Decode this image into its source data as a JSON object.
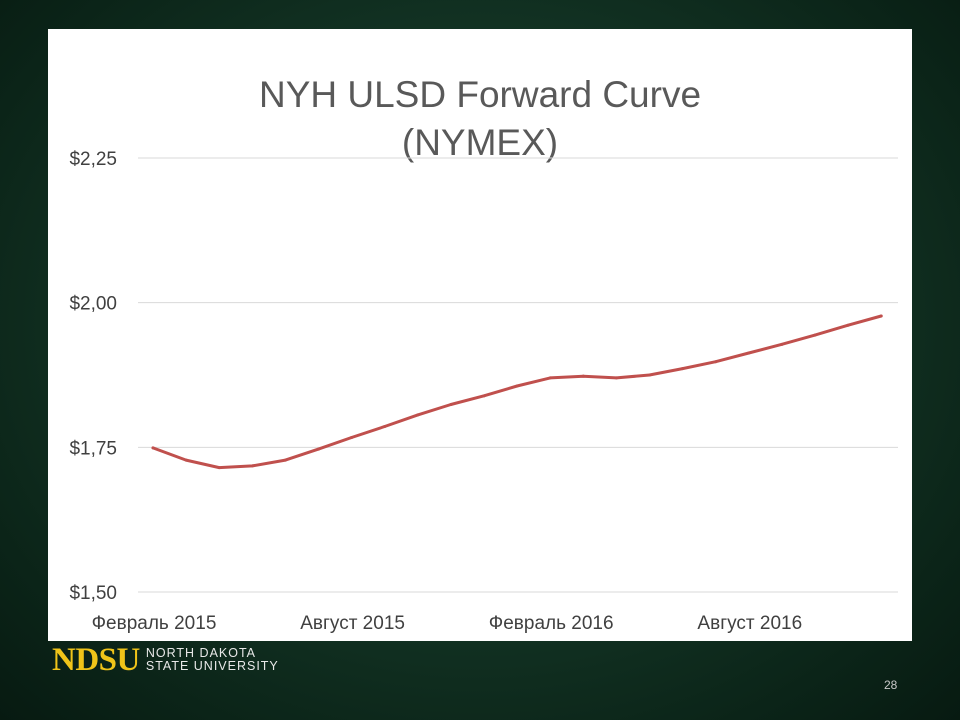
{
  "slide": {
    "logo": {
      "wordmark": "NDSU",
      "line1": "NORTH DAKOTA",
      "line2": "STATE UNIVERSITY"
    },
    "page_number": "28"
  },
  "chart_data": {
    "type": "line",
    "title_lines": [
      "NYH ULSD Forward Curve",
      "(NYMEX)"
    ],
    "xlabel": "",
    "ylabel": "",
    "x_tick_labels": [
      "Февраль 2015",
      "Август 2015",
      "Февраль 2016",
      "Август 2016"
    ],
    "x_tick_indices": [
      0,
      6,
      12,
      18
    ],
    "y_ticks": [
      1.5,
      1.75,
      2.0,
      2.25
    ],
    "y_tick_labels": [
      "$1,50",
      "$1,75",
      "$2,00",
      "$2,25"
    ],
    "ylim": [
      1.5,
      2.25
    ],
    "grid": true,
    "legend": "none",
    "series": [
      {
        "color": "#c0504d",
        "values": [
          1.749,
          1.728,
          1.715,
          1.718,
          1.728,
          1.747,
          1.767,
          1.786,
          1.806,
          1.824,
          1.839,
          1.856,
          1.87,
          1.873,
          1.87,
          1.875,
          1.886,
          1.898,
          1.913,
          1.928,
          1.944,
          1.961,
          1.977
        ]
      }
    ]
  }
}
